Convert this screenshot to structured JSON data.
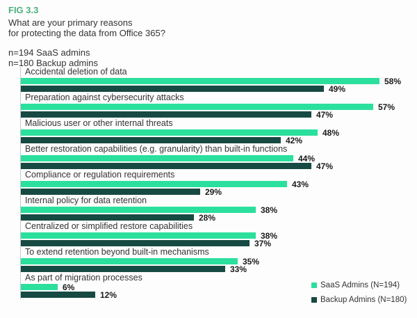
{
  "header": {
    "fig_label": "FIG 3.3",
    "title_line1": "What are your primary reasons",
    "title_line2": "for protecting the data from Office 365?",
    "sample_line1": "n=194 SaaS admins",
    "sample_line2": "n=180 Backup admins"
  },
  "chart_data": {
    "type": "bar",
    "orientation": "horizontal",
    "title": "What are your primary reasons for protecting the data from Office 365?",
    "unit": "%",
    "value_label_format": "{v}%",
    "grid": false,
    "xlim": [
      0,
      63
    ],
    "legend_position": "bottom-right",
    "categories": [
      "Accidental deletion of data",
      "Preparation against cybersecurity attacks",
      "Malicious user or other internal threats",
      "Better restoration capabilities (e.g. granularity) than built-in functions",
      "Compliance or regulation requirements",
      "Internal policy for data retention",
      "Centralized or simplified restore capabilities",
      "To extend retention beyond built-in mechanisms",
      "As part of migration processes"
    ],
    "series": [
      {
        "name": "SaaS Admins (N=194)",
        "color": "#2bdf9d",
        "values": [
          58,
          57,
          48,
          44,
          43,
          38,
          38,
          35,
          6
        ]
      },
      {
        "name": "Backup Admins (N=180)",
        "color": "#164a42",
        "values": [
          49,
          47,
          42,
          47,
          29,
          28,
          37,
          33,
          12
        ]
      }
    ]
  },
  "colors": {
    "fig_label_green": "#4cb07c",
    "saas_bar_green": "#2bdf9d",
    "backup_bar_teal": "#164a42",
    "text": "#333333",
    "axis_line": "#c5cac8",
    "background": "#fdfdfd"
  }
}
